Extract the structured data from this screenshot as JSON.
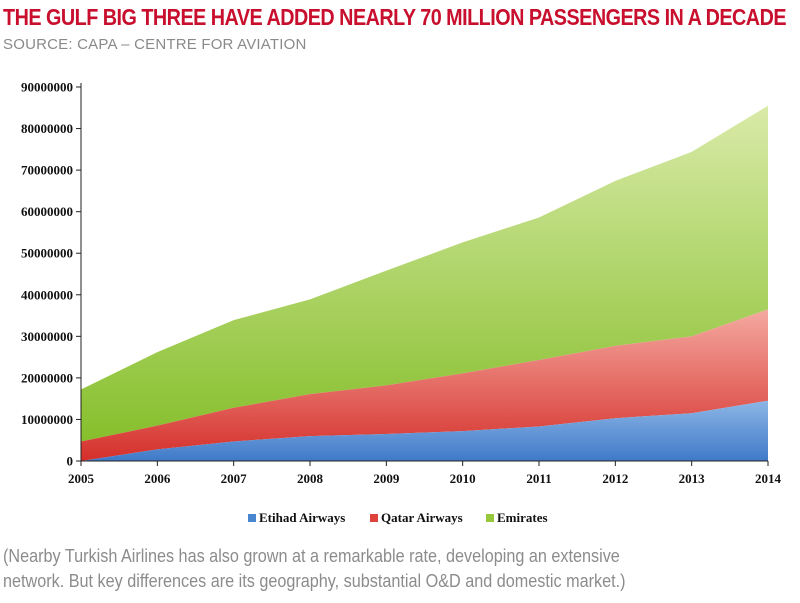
{
  "header": {
    "title": "THE GULF BIG THREE HAVE ADDED NEARLY 70 MILLION PASSENGERS IN A DECADE",
    "source": "SOURCE: CAPA – CENTRE FOR AVIATION"
  },
  "caption": {
    "line1": "(Nearby Turkish Airlines has also grown at a remarkable rate, developing an extensive",
    "line2": "network. But key differences are its geography, substantial O&D and domestic market.)"
  },
  "colors": {
    "etihad": "#4a86d0",
    "qatar": "#e0413a",
    "emirates": "#96c83c"
  },
  "chart_data": {
    "type": "area",
    "stacked": true,
    "x": [
      "2005",
      "2006",
      "2007",
      "2008",
      "2009",
      "2010",
      "2011",
      "2012",
      "2013",
      "2014"
    ],
    "series": [
      {
        "name": "Etihad Airways",
        "values": [
          0,
          2800000,
          4700000,
          6000000,
          6500000,
          7200000,
          8300000,
          10300000,
          11500000,
          14500000
        ]
      },
      {
        "name": "Qatar Airways",
        "values": [
          4700000,
          5700000,
          8100000,
          10100000,
          11700000,
          13900000,
          16000000,
          17400000,
          18500000,
          22000000
        ]
      },
      {
        "name": "Emirates",
        "values": [
          12500000,
          17700000,
          21100000,
          22800000,
          27600000,
          31500000,
          34300000,
          39700000,
          44400000,
          49000000
        ]
      }
    ],
    "ylim": [
      0,
      90000000
    ],
    "yticks": [
      0,
      10000000,
      20000000,
      30000000,
      40000000,
      50000000,
      60000000,
      70000000,
      80000000,
      90000000
    ],
    "legend": "bottom"
  }
}
